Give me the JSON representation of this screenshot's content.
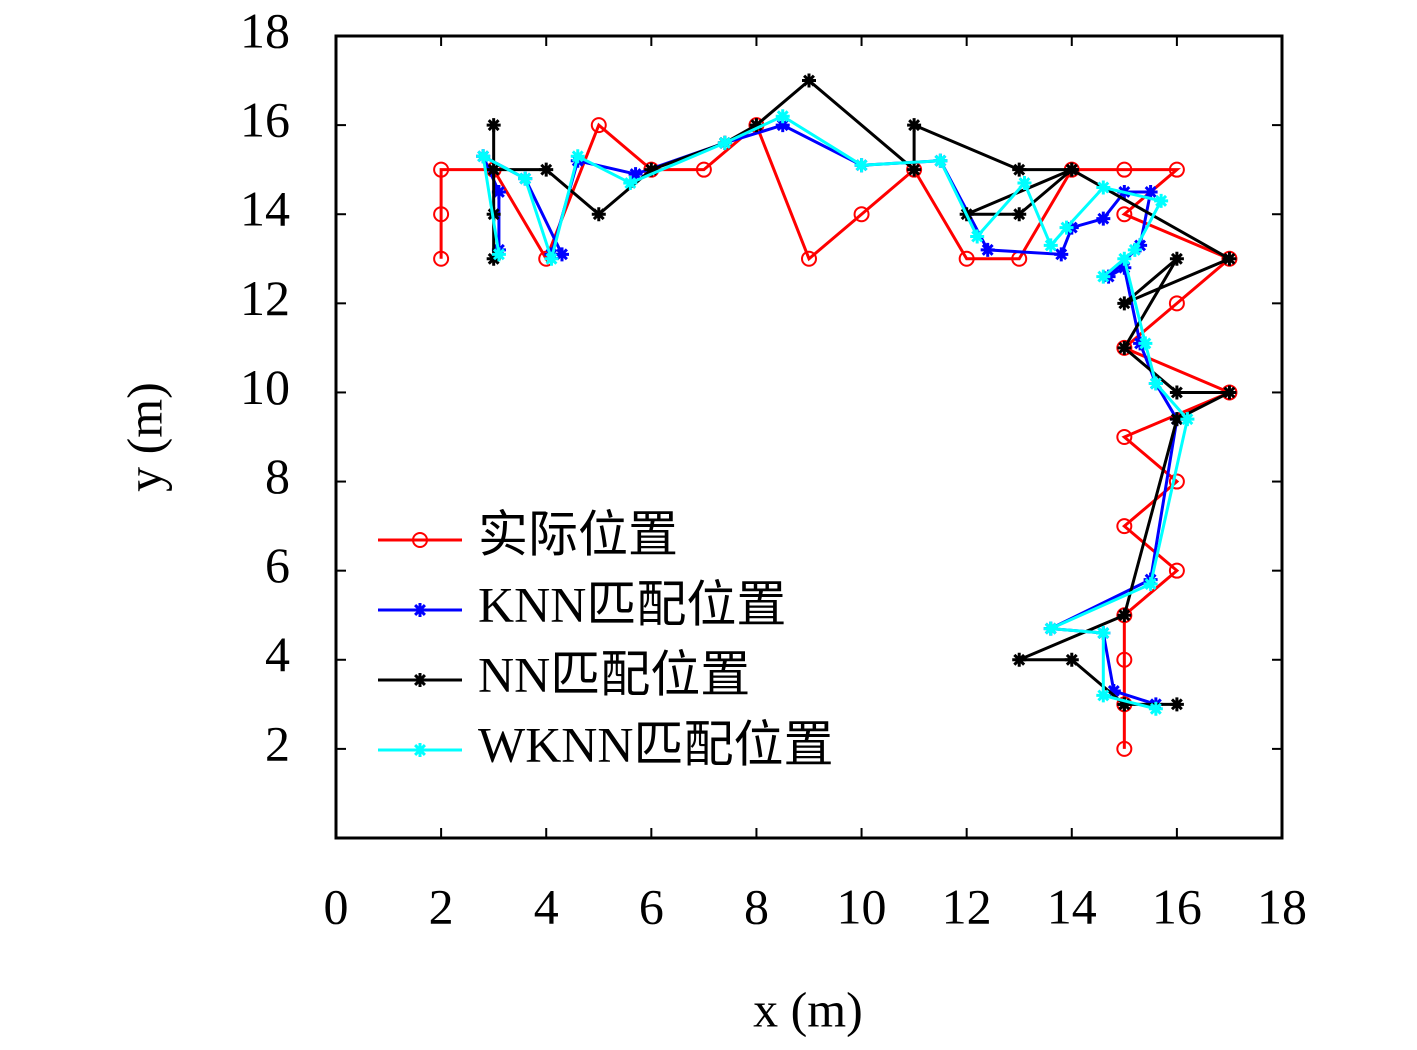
{
  "chart_data": {
    "type": "line",
    "xlabel": "x (m)",
    "ylabel": "y (m)",
    "xlim": [
      0,
      18
    ],
    "ylim": [
      0,
      18
    ],
    "xticks": [
      0,
      2,
      4,
      6,
      8,
      10,
      12,
      14,
      16,
      18
    ],
    "yticks": [
      2,
      4,
      6,
      8,
      10,
      12,
      14,
      16,
      18
    ],
    "legend": "lower left",
    "series": [
      {
        "name": "实际位置",
        "color": "#ff0000",
        "marker": "circle",
        "x": [
          2,
          2,
          2,
          3,
          4,
          5,
          6,
          7,
          8,
          9,
          10,
          11,
          12,
          13,
          14,
          15,
          16,
          15,
          17,
          16,
          15,
          17,
          15,
          16,
          15,
          16,
          15,
          15,
          15,
          15
        ],
        "values": [
          13,
          14,
          15,
          15,
          13,
          16,
          15,
          15,
          16,
          13,
          14,
          15,
          13,
          13,
          15,
          15,
          15,
          14,
          13,
          12,
          11,
          10,
          9,
          8,
          7,
          6,
          5,
          4,
          3,
          2
        ]
      },
      {
        "name": "KNN匹配位置",
        "color": "#0000ff",
        "marker": "star",
        "x": [
          3.1,
          3.1,
          2.8,
          3.6,
          4.3,
          4.1,
          4.6,
          5.7,
          7.4,
          8.5,
          10,
          11.5,
          12.4,
          13.8,
          14,
          14.6,
          15,
          15.5,
          15.3,
          14.7,
          15,
          15.3,
          15.6,
          16,
          15.5,
          13.6,
          14.6,
          14.8,
          15.6
        ],
        "values": [
          13.2,
          14.5,
          15.3,
          14.8,
          13.1,
          13.1,
          15.2,
          14.9,
          15.6,
          16,
          15.1,
          15.2,
          13.2,
          13.1,
          13.7,
          13.9,
          14.5,
          14.5,
          13.3,
          12.6,
          12.8,
          11.1,
          10.2,
          9.4,
          5.8,
          4.7,
          4.6,
          3.3,
          3
        ]
      },
      {
        "name": "NN匹配位置",
        "color": "#000000",
        "marker": "star",
        "x": [
          3,
          3,
          3,
          3,
          4,
          5,
          6,
          7.4,
          8,
          9,
          11,
          11,
          13,
          14,
          12,
          13,
          14,
          17,
          15,
          16,
          15,
          16,
          17,
          16,
          15,
          13,
          14,
          15,
          16,
          15
        ],
        "values": [
          13,
          14,
          16,
          15,
          15,
          14,
          15,
          15.6,
          16,
          17,
          15,
          16,
          15,
          15,
          14,
          14,
          15,
          13,
          12,
          13,
          11,
          10,
          10,
          9.4,
          5,
          4,
          4,
          3,
          3,
          3
        ]
      },
      {
        "name": "WKNN匹配位置",
        "color": "#00ffff",
        "marker": "star",
        "x": [
          3.1,
          2.8,
          3.6,
          4.1,
          4.6,
          5.6,
          7.4,
          8.5,
          10,
          11.5,
          12.2,
          13.1,
          13.6,
          13.9,
          14.6,
          15.7,
          15.2,
          14.6,
          15,
          15.4,
          15.6,
          16.2,
          15.5,
          13.6,
          14.6,
          14.6,
          15.6
        ],
        "values": [
          13.1,
          15.3,
          14.8,
          13,
          15.3,
          14.7,
          15.6,
          16.2,
          15.1,
          15.2,
          13.5,
          14.7,
          13.3,
          13.7,
          14.6,
          14.3,
          13.2,
          12.6,
          13,
          11.1,
          10.2,
          9.4,
          5.7,
          4.7,
          4.6,
          3.2,
          2.9
        ]
      }
    ]
  }
}
